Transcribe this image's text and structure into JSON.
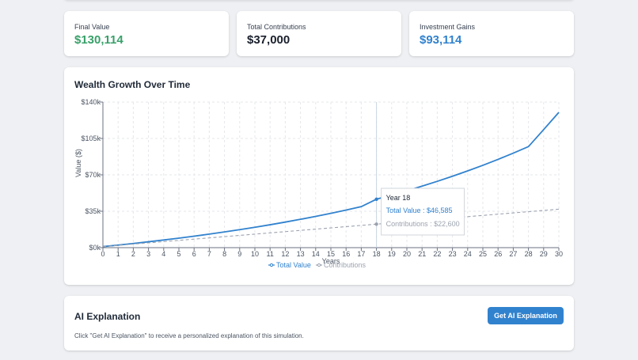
{
  "stats": {
    "final": {
      "label": "Final Value",
      "value": "$130,114",
      "color": "#38a169"
    },
    "contributions": {
      "label": "Total Contributions",
      "value": "$37,000",
      "color": "#1a202c"
    },
    "gains": {
      "label": "Investment Gains",
      "value": "$93,114",
      "color": "#3182ce"
    }
  },
  "chart_section": {
    "title": "Wealth Growth Over Time"
  },
  "chart_data": {
    "type": "line",
    "xlabel": "Years",
    "ylabel": "Value ($)",
    "x": [
      0,
      1,
      2,
      3,
      4,
      5,
      6,
      7,
      8,
      9,
      10,
      11,
      12,
      13,
      14,
      15,
      16,
      17,
      18,
      19,
      20,
      21,
      22,
      23,
      24,
      25,
      26,
      27,
      28,
      29,
      30
    ],
    "ylim": [
      0,
      140000
    ],
    "yticks": [
      0,
      35000,
      70000,
      105000,
      140000
    ],
    "ytick_labels": [
      "$0k",
      "$35k",
      "$70k",
      "$105k",
      "$140k"
    ],
    "grid": true,
    "legend_position": "bottom",
    "series": [
      {
        "name": "Total Value",
        "color": "#3182ce",
        "style": "solid",
        "values": [
          1000,
          2470,
          4020,
          5650,
          7360,
          9150,
          11040,
          13020,
          15110,
          17300,
          19610,
          22030,
          24580,
          27260,
          30070,
          33030,
          36150,
          39420,
          46585,
          50550,
          54720,
          59130,
          63770,
          68650,
          73790,
          79200,
          84890,
          90870,
          97160,
          113500,
          130114
        ]
      },
      {
        "name": "Contributions",
        "color": "#9ca3af",
        "style": "dashed",
        "values": [
          1000,
          2200,
          3400,
          4600,
          5800,
          7000,
          8200,
          9400,
          10600,
          11800,
          13000,
          14200,
          15400,
          16600,
          17800,
          19000,
          20200,
          21400,
          22600,
          23800,
          25000,
          26200,
          27400,
          28600,
          29800,
          31000,
          32200,
          33400,
          34600,
          35800,
          37000
        ]
      }
    ],
    "tooltip": {
      "title": "Year 18",
      "total": "Total Value : $46,585",
      "contrib": "Contributions : $22,600",
      "x": 18
    }
  },
  "ai": {
    "title": "AI Explanation",
    "button_label": "Get AI Explanation",
    "description": "Click \"Get AI Explanation\" to receive a personalized explanation of this simulation."
  }
}
